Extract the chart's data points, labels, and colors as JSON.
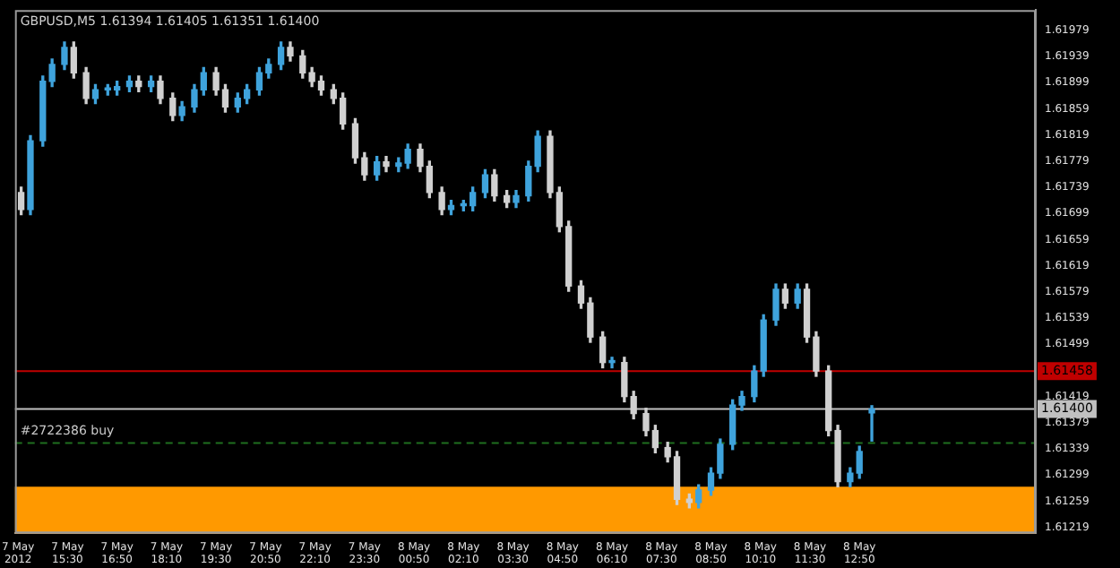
{
  "chart_data": {
    "type": "candlestick",
    "title": "GBPUSD,M5 1.61394 1.61405 1.61351 1.61400",
    "x": [
      "2012-05-07T14:15",
      "2012-05-07T14:30",
      "2012-05-07T14:50",
      "2012-05-07T15:05",
      "2012-05-07T15:25",
      "2012-05-07T15:40",
      "2012-05-07T16:00",
      "2012-05-07T16:15",
      "2012-05-07T16:35",
      "2012-05-07T16:50",
      "2012-05-07T17:10",
      "2012-05-07T17:25",
      "2012-05-07T17:45",
      "2012-05-07T18:00",
      "2012-05-07T18:20",
      "2012-05-07T18:35",
      "2012-05-07T18:55",
      "2012-05-07T19:10",
      "2012-05-07T19:30",
      "2012-05-07T19:45",
      "2012-05-07T20:05",
      "2012-05-07T20:20",
      "2012-05-07T20:40",
      "2012-05-07T20:55",
      "2012-05-07T21:15",
      "2012-05-07T21:30",
      "2012-05-07T21:50",
      "2012-05-07T22:05",
      "2012-05-07T22:20",
      "2012-05-07T22:40",
      "2012-05-07T22:55",
      "2012-05-07T23:15",
      "2012-05-07T23:30",
      "2012-05-07T23:50",
      "2012-05-08T00:05",
      "2012-05-08T00:25",
      "2012-05-08T00:40",
      "2012-05-08T01:00",
      "2012-05-08T01:15",
      "2012-05-08T01:35",
      "2012-05-08T01:50",
      "2012-05-08T02:10",
      "2012-05-08T02:25",
      "2012-05-08T02:45",
      "2012-05-08T03:00",
      "2012-05-08T03:20",
      "2012-05-08T03:35",
      "2012-05-08T03:55",
      "2012-05-08T04:10",
      "2012-05-08T04:30",
      "2012-05-08T04:45",
      "2012-05-08T05:00",
      "2012-05-08T05:20",
      "2012-05-08T05:35",
      "2012-05-08T05:55",
      "2012-05-08T06:10",
      "2012-05-08T06:30",
      "2012-05-08T06:45",
      "2012-05-08T07:05",
      "2012-05-08T07:20",
      "2012-05-08T07:40",
      "2012-05-08T07:55",
      "2012-05-08T08:15",
      "2012-05-08T08:30",
      "2012-05-08T08:50",
      "2012-05-08T09:05",
      "2012-05-08T09:25",
      "2012-05-08T09:40",
      "2012-05-08T10:00",
      "2012-05-08T10:15",
      "2012-05-08T10:35",
      "2012-05-08T10:50",
      "2012-05-08T11:10",
      "2012-05-08T11:25",
      "2012-05-08T11:40",
      "2012-05-08T12:00",
      "2012-05-08T12:15",
      "2012-05-08T12:35",
      "2012-05-08T12:50",
      "2012-05-08T13:10"
    ],
    "ohlc": [
      [
        1.61731,
        1.61739,
        1.61697,
        1.61705
      ],
      [
        1.61705,
        1.61818,
        1.61697,
        1.6181
      ],
      [
        1.6181,
        1.61909,
        1.61802,
        1.61901
      ],
      [
        1.61901,
        1.61935,
        1.61893,
        1.61927
      ],
      [
        1.61927,
        1.61961,
        1.61919,
        1.61953
      ],
      [
        1.61953,
        1.61961,
        1.61906,
        1.61914
      ],
      [
        1.61914,
        1.61922,
        1.61867,
        1.61875
      ],
      [
        1.61875,
        1.61896,
        1.61867,
        1.61888
      ],
      [
        1.61888,
        1.61896,
        1.6188,
        1.61891
      ],
      [
        1.61888,
        1.61901,
        1.6188,
        1.61893
      ],
      [
        1.61893,
        1.61909,
        1.61885,
        1.61901
      ],
      [
        1.61901,
        1.61909,
        1.61885,
        1.61893
      ],
      [
        1.61893,
        1.61909,
        1.61885,
        1.61901
      ],
      [
        1.61901,
        1.61909,
        1.61867,
        1.61875
      ],
      [
        1.61875,
        1.61883,
        1.61841,
        1.61849
      ],
      [
        1.61849,
        1.6187,
        1.61841,
        1.61862
      ],
      [
        1.61862,
        1.61896,
        1.61854,
        1.61888
      ],
      [
        1.61888,
        1.61922,
        1.6188,
        1.61914
      ],
      [
        1.61914,
        1.61922,
        1.6188,
        1.61888
      ],
      [
        1.61888,
        1.61896,
        1.61854,
        1.61862
      ],
      [
        1.61862,
        1.61883,
        1.61854,
        1.61875
      ],
      [
        1.61875,
        1.61896,
        1.61867,
        1.61888
      ],
      [
        1.61888,
        1.61922,
        1.6188,
        1.61914
      ],
      [
        1.61914,
        1.61935,
        1.61906,
        1.61927
      ],
      [
        1.61927,
        1.61961,
        1.61919,
        1.61953
      ],
      [
        1.61953,
        1.61961,
        1.61932,
        1.6194
      ],
      [
        1.6194,
        1.61948,
        1.61906,
        1.61914
      ],
      [
        1.61914,
        1.61922,
        1.61893,
        1.61901
      ],
      [
        1.61901,
        1.61909,
        1.6188,
        1.61888
      ],
      [
        1.61888,
        1.61896,
        1.61867,
        1.61875
      ],
      [
        1.61875,
        1.61883,
        1.61828,
        1.61836
      ],
      [
        1.61836,
        1.61844,
        1.61776,
        1.61784
      ],
      [
        1.61784,
        1.61792,
        1.6175,
        1.61758
      ],
      [
        1.61758,
        1.61786,
        1.6175,
        1.61778
      ],
      [
        1.61778,
        1.61786,
        1.61763,
        1.61771
      ],
      [
        1.61771,
        1.61784,
        1.61763,
        1.61776
      ],
      [
        1.61776,
        1.61805,
        1.61768,
        1.61797
      ],
      [
        1.61797,
        1.61805,
        1.61763,
        1.61771
      ],
      [
        1.61771,
        1.61779,
        1.61723,
        1.61731
      ],
      [
        1.61731,
        1.61739,
        1.61697,
        1.61705
      ],
      [
        1.61705,
        1.61719,
        1.61697,
        1.61711
      ],
      [
        1.61711,
        1.61719,
        1.61703,
        1.61713
      ],
      [
        1.61711,
        1.61739,
        1.61703,
        1.61731
      ],
      [
        1.61731,
        1.61766,
        1.61723,
        1.61758
      ],
      [
        1.61758,
        1.61766,
        1.61718,
        1.61726
      ],
      [
        1.61726,
        1.61734,
        1.61708,
        1.61716
      ],
      [
        1.61716,
        1.61734,
        1.61708,
        1.61726
      ],
      [
        1.61726,
        1.61779,
        1.61718,
        1.61771
      ],
      [
        1.61771,
        1.61825,
        1.61763,
        1.61817
      ],
      [
        1.61817,
        1.61825,
        1.61723,
        1.61731
      ],
      [
        1.61731,
        1.61739,
        1.61671,
        1.61679
      ],
      [
        1.61679,
        1.61687,
        1.6158,
        1.61588
      ],
      [
        1.61588,
        1.61596,
        1.61554,
        1.61562
      ],
      [
        1.61562,
        1.6157,
        1.61502,
        1.6151
      ],
      [
        1.6151,
        1.61518,
        1.61463,
        1.61471
      ],
      [
        1.61471,
        1.61479,
        1.61463,
        1.61474
      ],
      [
        1.61471,
        1.61479,
        1.61411,
        1.61419
      ],
      [
        1.61419,
        1.61427,
        1.61385,
        1.61393
      ],
      [
        1.61393,
        1.61401,
        1.61359,
        1.61367
      ],
      [
        1.61367,
        1.61375,
        1.61333,
        1.61341
      ],
      [
        1.61341,
        1.61349,
        1.61319,
        1.61327
      ],
      [
        1.61327,
        1.61335,
        1.61254,
        1.61262
      ],
      [
        1.61262,
        1.6127,
        1.61249,
        1.61257
      ],
      [
        1.61257,
        1.61284,
        1.61249,
        1.61276
      ],
      [
        1.61276,
        1.6131,
        1.61268,
        1.61302
      ],
      [
        1.61302,
        1.61354,
        1.61294,
        1.61346
      ],
      [
        1.61346,
        1.61414,
        1.61338,
        1.61406
      ],
      [
        1.61406,
        1.61427,
        1.61398,
        1.61419
      ],
      [
        1.61419,
        1.61466,
        1.61411,
        1.61458
      ],
      [
        1.61458,
        1.61544,
        1.6145,
        1.61536
      ],
      [
        1.61536,
        1.61591,
        1.61528,
        1.61583
      ],
      [
        1.61583,
        1.61591,
        1.61554,
        1.61562
      ],
      [
        1.61562,
        1.61591,
        1.61554,
        1.61583
      ],
      [
        1.61583,
        1.61591,
        1.61502,
        1.6151
      ],
      [
        1.6151,
        1.61518,
        1.6145,
        1.61458
      ],
      [
        1.61458,
        1.61466,
        1.61359,
        1.61367
      ],
      [
        1.61367,
        1.61375,
        1.61281,
        1.61289
      ],
      [
        1.61289,
        1.6131,
        1.61281,
        1.61302
      ],
      [
        1.61302,
        1.61343,
        1.61294,
        1.61335
      ],
      [
        1.61394,
        1.61405,
        1.61351,
        1.614
      ]
    ],
    "colors": [
      "#d0d0d0",
      "#3fa3dc",
      "#3fa3dc",
      "#3fa3dc",
      "#3fa3dc",
      "#d0d0d0",
      "#d0d0d0",
      "#3fa3dc",
      "#3fa3dc",
      "#3fa3dc",
      "#3fa3dc",
      "#d0d0d0",
      "#3fa3dc",
      "#d0d0d0",
      "#d0d0d0",
      "#3fa3dc",
      "#3fa3dc",
      "#3fa3dc",
      "#d0d0d0",
      "#d0d0d0",
      "#3fa3dc",
      "#3fa3dc",
      "#3fa3dc",
      "#3fa3dc",
      "#3fa3dc",
      "#d0d0d0",
      "#d0d0d0",
      "#d0d0d0",
      "#d0d0d0",
      "#d0d0d0",
      "#d0d0d0",
      "#d0d0d0",
      "#d0d0d0",
      "#3fa3dc",
      "#d0d0d0",
      "#3fa3dc",
      "#3fa3dc",
      "#d0d0d0",
      "#d0d0d0",
      "#d0d0d0",
      "#3fa3dc",
      "#3fa3dc",
      "#3fa3dc",
      "#3fa3dc",
      "#d0d0d0",
      "#d0d0d0",
      "#3fa3dc",
      "#3fa3dc",
      "#3fa3dc",
      "#d0d0d0",
      "#d0d0d0",
      "#d0d0d0",
      "#d0d0d0",
      "#d0d0d0",
      "#d0d0d0",
      "#3fa3dc",
      "#d0d0d0",
      "#d0d0d0",
      "#d0d0d0",
      "#d0d0d0",
      "#d0d0d0",
      "#d0d0d0",
      "#d0d0d0",
      "#3fa3dc",
      "#3fa3dc",
      "#3fa3dc",
      "#3fa3dc",
      "#3fa3dc",
      "#3fa3dc",
      "#3fa3dc",
      "#3fa3dc",
      "#d0d0d0",
      "#3fa3dc",
      "#d0d0d0",
      "#d0d0d0",
      "#d0d0d0",
      "#d0d0d0",
      "#3fa3dc",
      "#3fa3dc",
      "#3fa3dc"
    ],
    "xlim": [
      "2012-05-07T14:05",
      "2012-05-08T17:35"
    ],
    "xticks": [
      {
        "value": "2012-05-07T14:10",
        "label": "7 May 2012"
      },
      {
        "value": "2012-05-07T15:30",
        "label": "7 May 15:30"
      },
      {
        "value": "2012-05-07T16:50",
        "label": "7 May 16:50"
      },
      {
        "value": "2012-05-07T18:10",
        "label": "7 May 18:10"
      },
      {
        "value": "2012-05-07T19:30",
        "label": "7 May 19:30"
      },
      {
        "value": "2012-05-07T20:50",
        "label": "7 May 20:50"
      },
      {
        "value": "2012-05-07T22:10",
        "label": "7 May 22:10"
      },
      {
        "value": "2012-05-07T23:30",
        "label": "7 May 23:30"
      },
      {
        "value": "2012-05-08T00:50",
        "label": "8 May 00:50"
      },
      {
        "value": "2012-05-08T02:10",
        "label": "8 May 02:10"
      },
      {
        "value": "2012-05-08T03:30",
        "label": "8 May 03:30"
      },
      {
        "value": "2012-05-08T04:50",
        "label": "8 May 04:50"
      },
      {
        "value": "2012-05-08T06:10",
        "label": "8 May 06:10"
      },
      {
        "value": "2012-05-08T07:30",
        "label": "8 May 07:30"
      },
      {
        "value": "2012-05-08T08:50",
        "label": "8 May 08:50"
      },
      {
        "value": "2012-05-08T10:10",
        "label": "8 May 10:10"
      },
      {
        "value": "2012-05-08T11:30",
        "label": "8 May 11:30"
      },
      {
        "value": "2012-05-08T12:50",
        "label": "8 May 12:50"
      }
    ],
    "ylim": [
      1.6121,
      1.6201
    ],
    "yticks": [
      1.61979,
      1.61939,
      1.61899,
      1.61859,
      1.61819,
      1.61779,
      1.61739,
      1.61699,
      1.61659,
      1.61619,
      1.61579,
      1.61539,
      1.61499,
      1.61419,
      1.61379,
      1.61339,
      1.61299,
      1.61259,
      1.61219
    ],
    "ref_lines": [
      {
        "axis": "y",
        "value": 1.61458,
        "label": "1.61458",
        "color": "#c00000"
      },
      {
        "axis": "y",
        "value": 1.614,
        "label": "1.61400",
        "color": "#c0c0c0"
      },
      {
        "axis": "y",
        "value": 1.61348,
        "label": "#2722386 buy",
        "color": "#1f6e1f",
        "line_style": "dashed"
      }
    ],
    "bands": [
      {
        "axis": "y",
        "from": 1.6121,
        "to": 1.61281,
        "color": "#ff9900"
      }
    ]
  }
}
